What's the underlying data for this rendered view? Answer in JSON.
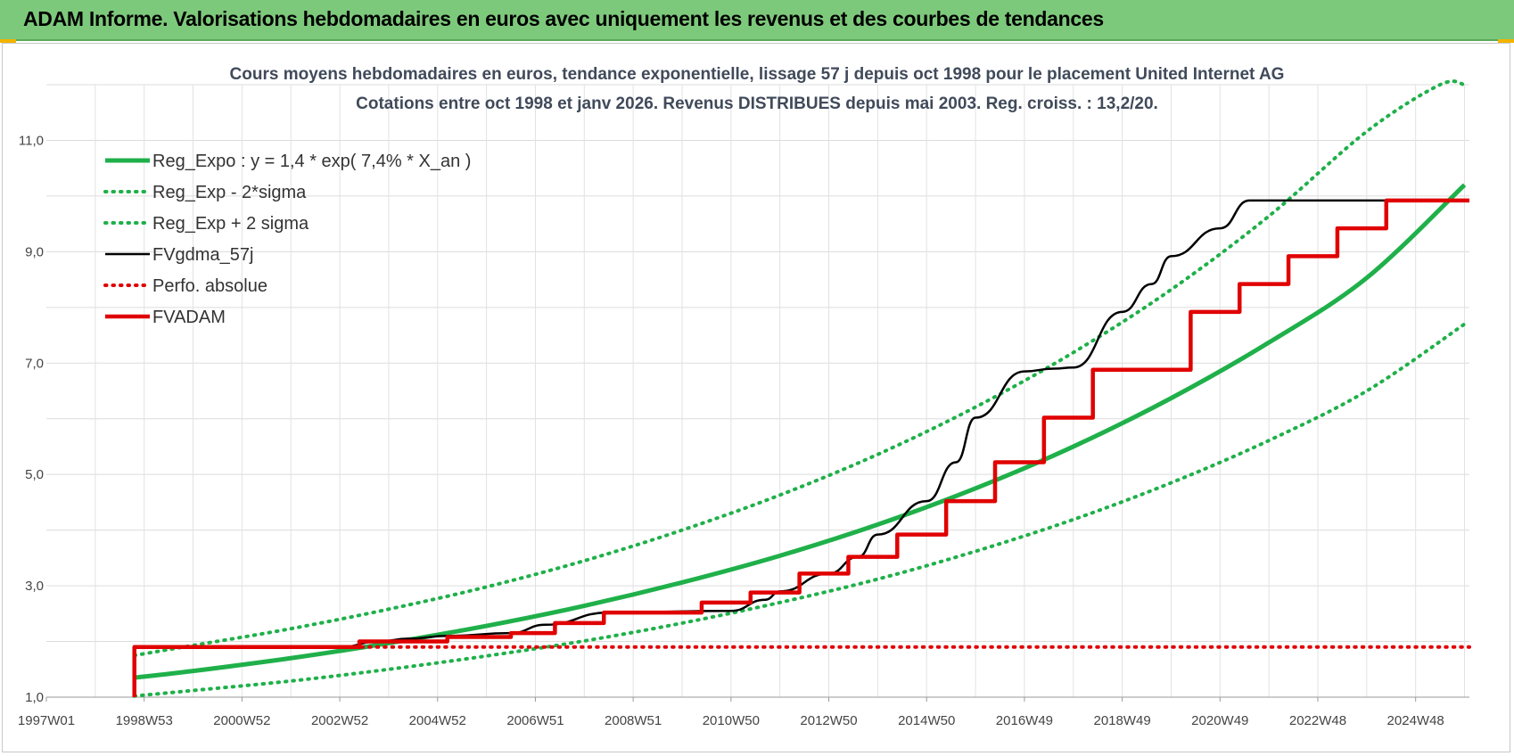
{
  "banner": {
    "title": "ADAM Informe. Valorisations hebdomadaires en euros avec uniquement les revenus et des courbes de tendances"
  },
  "chart_data": {
    "type": "line",
    "title": "Cours moyens hebdomadaires en euros, tendance exponentielle, lissage 57 j depuis oct 1998 pour le placement United Internet AG",
    "subtitle": "Cotations entre oct 1998 et janv 2026. Revenus DISTRIBUES depuis mai 2003. Reg. croiss. : 13,2/20.",
    "xlabel": "",
    "ylabel": "",
    "xlim": [
      1997.0,
      2026.1
    ],
    "ylim": [
      1.0,
      12.0
    ],
    "y_ticks": [
      {
        "v": 1.0,
        "label": "1,0"
      },
      {
        "v": 3.0,
        "label": "3,0"
      },
      {
        "v": 5.0,
        "label": "5,0"
      },
      {
        "v": 7.0,
        "label": "7,0"
      },
      {
        "v": 9.0,
        "label": "9,0"
      },
      {
        "v": 11.0,
        "label": "11,0"
      }
    ],
    "x_ticks": [
      {
        "v": 1997.0,
        "label": "1997W01"
      },
      {
        "v": 1999.0,
        "label": "1998W53"
      },
      {
        "v": 2001.0,
        "label": "2000W52"
      },
      {
        "v": 2003.0,
        "label": "2002W52"
      },
      {
        "v": 2005.0,
        "label": "2004W52"
      },
      {
        "v": 2007.0,
        "label": "2006W51"
      },
      {
        "v": 2009.0,
        "label": "2008W51"
      },
      {
        "v": 2011.0,
        "label": "2010W50"
      },
      {
        "v": 2013.0,
        "label": "2012W50"
      },
      {
        "v": 2015.0,
        "label": "2014W50"
      },
      {
        "v": 2017.0,
        "label": "2016W49"
      },
      {
        "v": 2019.0,
        "label": "2018W49"
      },
      {
        "v": 2021.0,
        "label": "2020W49"
      },
      {
        "v": 2023.0,
        "label": "2022W48"
      },
      {
        "v": 2025.0,
        "label": "2024W48"
      }
    ],
    "grid": true,
    "legend_position": "top-left",
    "series": [
      {
        "name": "Reg_Expo : y = 1,4 * exp( 7,4% *  X_an )",
        "color": "#1fb04a",
        "style": "solid-thick",
        "x": [
          1998.8,
          2000,
          2002,
          2004,
          2006,
          2008,
          2010,
          2012,
          2014,
          2016,
          2018,
          2020,
          2022,
          2024,
          2026
        ],
        "y": [
          1.35,
          1.47,
          1.7,
          1.97,
          2.28,
          2.64,
          3.06,
          3.54,
          4.1,
          4.75,
          5.5,
          6.37,
          7.37,
          8.53,
          10.2
        ]
      },
      {
        "name": "Reg_Exp - 2*sigma",
        "color": "#1fb04a",
        "style": "dotted",
        "x": [
          1998.8,
          2000,
          2002,
          2004,
          2006,
          2008,
          2010,
          2012,
          2014,
          2016,
          2018,
          2020,
          2022,
          2024,
          2026
        ],
        "y": [
          1.02,
          1.12,
          1.29,
          1.5,
          1.74,
          2.01,
          2.33,
          2.7,
          3.12,
          3.62,
          4.19,
          4.85,
          5.61,
          6.5,
          7.7
        ]
      },
      {
        "name": "Reg_Exp + 2 sigma",
        "color": "#1fb04a",
        "style": "dotted",
        "x": [
          1998.8,
          2000,
          2002,
          2004,
          2006,
          2008,
          2010,
          2012,
          2014,
          2016,
          2018,
          2020,
          2022,
          2024,
          2025.5,
          2026
        ],
        "y": [
          1.75,
          1.93,
          2.23,
          2.58,
          2.98,
          3.45,
          4.0,
          4.63,
          5.36,
          6.21,
          7.19,
          8.32,
          9.64,
          11.16,
          12.0,
          12.0
        ]
      },
      {
        "name": "FVgdma_57j",
        "color": "#000000",
        "style": "solid",
        "x": [
          1998.8,
          2003.0,
          2003.8,
          2004.4,
          2005.2,
          2006.5,
          2007.2,
          2008.5,
          2011.0,
          2011.7,
          2012.0,
          2013.0,
          2013.6,
          2014.0,
          2015.0,
          2015.6,
          2016.0,
          2017.0,
          2017.6,
          2018.0,
          2019.0,
          2019.6,
          2020.0,
          2021.0,
          2021.6,
          2022.0,
          2023.0,
          2023.6,
          2024.0,
          2025.0,
          2026.1
        ],
        "y": [
          1.9,
          1.9,
          2.0,
          2.05,
          2.1,
          2.15,
          2.3,
          2.52,
          2.55,
          2.75,
          2.9,
          3.22,
          3.52,
          3.92,
          4.52,
          5.22,
          6.02,
          6.85,
          6.9,
          6.92,
          7.92,
          8.42,
          8.92,
          9.42,
          9.92,
          9.92,
          9.92,
          9.92,
          9.92,
          9.92,
          9.92
        ]
      },
      {
        "name": "Perfo. absolue",
        "color": "#e00000",
        "style": "dotted",
        "x": [
          1998.8,
          2026.1
        ],
        "y": [
          1.9,
          1.9
        ]
      },
      {
        "name": "FVADAM",
        "color": "#e00000",
        "style": "step-thick",
        "x": [
          1998.8,
          1998.8,
          2003.4,
          2003.4,
          2005.2,
          2005.2,
          2006.5,
          2006.5,
          2007.4,
          2007.4,
          2008.4,
          2008.4,
          2010.4,
          2010.4,
          2011.4,
          2011.4,
          2012.4,
          2012.4,
          2013.4,
          2013.4,
          2014.4,
          2014.4,
          2015.4,
          2015.4,
          2016.4,
          2016.4,
          2017.4,
          2017.4,
          2018.4,
          2018.4,
          2020.4,
          2020.4,
          2021.4,
          2021.4,
          2022.4,
          2022.4,
          2023.4,
          2023.4,
          2024.4,
          2024.4,
          2025.3,
          2025.3,
          2026.1
        ],
        "y": [
          1.0,
          1.9,
          1.9,
          2.0,
          2.0,
          2.08,
          2.08,
          2.15,
          2.15,
          2.33,
          2.33,
          2.52,
          2.52,
          2.7,
          2.7,
          2.88,
          2.88,
          3.22,
          3.22,
          3.52,
          3.52,
          3.92,
          3.92,
          4.52,
          4.52,
          5.22,
          5.22,
          6.02,
          6.02,
          6.88,
          6.88,
          7.92,
          7.92,
          8.42,
          8.42,
          8.92,
          8.92,
          9.42,
          9.42,
          9.92,
          9.92,
          9.92,
          9.92
        ]
      }
    ]
  }
}
